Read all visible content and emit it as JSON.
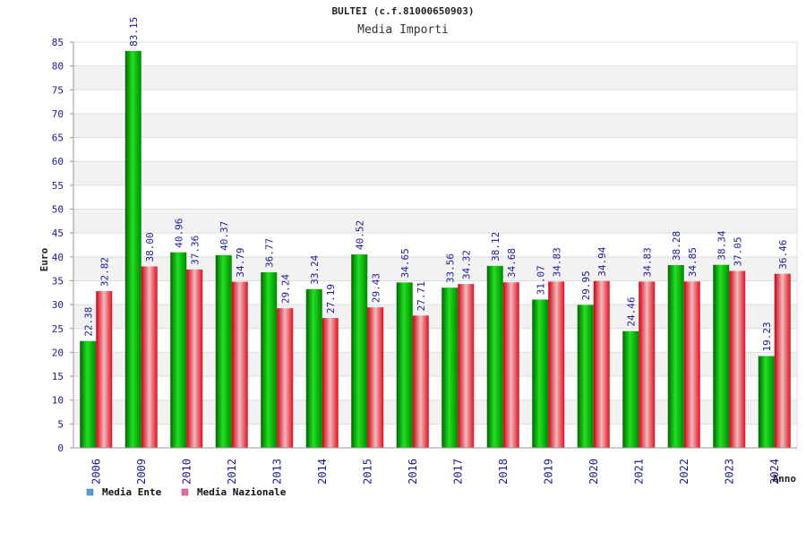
{
  "chart_data": {
    "type": "bar",
    "title": "BULTEI (c.f.81000650903)",
    "subtitle": "Media Importi",
    "xlabel": "Anno",
    "ylabel": "Euro",
    "ylim": [
      0,
      85
    ],
    "ytick_step": 5,
    "grid": true,
    "legend_position": "bottom-left",
    "categories": [
      "2006",
      "2009",
      "2010",
      "2012",
      "2013",
      "2014",
      "2015",
      "2016",
      "2017",
      "2018",
      "2019",
      "2020",
      "2021",
      "2022",
      "2023",
      "2024"
    ],
    "series": [
      {
        "name": "Media Ente",
        "color": "#00b000",
        "legend_color": "#5b9bd5",
        "values": [
          22.38,
          83.15,
          40.96,
          40.37,
          36.77,
          33.24,
          40.52,
          34.65,
          33.56,
          38.12,
          31.07,
          29.95,
          24.46,
          38.28,
          38.34,
          19.23
        ],
        "labels": [
          "22.38",
          "83.15",
          "40.96",
          "40.37",
          "36.77",
          "33.24",
          "40.52",
          "34.65",
          "33.56",
          "38.12",
          "31.07",
          "29.95",
          "24.46",
          "38.28",
          "38.34",
          "19.23"
        ]
      },
      {
        "name": "Media Nazionale",
        "color": "#e8202a",
        "legend_color": "#e06fa0",
        "values": [
          32.82,
          38.0,
          37.36,
          34.79,
          29.24,
          27.19,
          29.43,
          27.71,
          34.32,
          34.68,
          34.83,
          34.94,
          34.83,
          34.85,
          37.05,
          36.46
        ],
        "labels": [
          "32.82",
          "38.00",
          "37.36",
          "34.79",
          "29.24",
          "27.19",
          "29.43",
          "27.71",
          "34.32",
          "34.68",
          "34.83",
          "34.94",
          "34.83",
          "34.85",
          "37.05",
          "36.46"
        ]
      }
    ]
  }
}
